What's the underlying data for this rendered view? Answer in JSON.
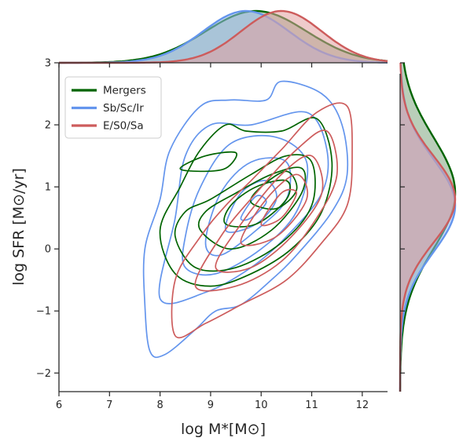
{
  "chart_data": {
    "type": "joint_kde",
    "xlabel": "log M*[M⊙]",
    "ylabel": "log SFR [M⊙/yr]",
    "xlim": [
      6,
      12.5
    ],
    "ylim": [
      -2.3,
      3.0
    ],
    "x_ticks": [
      "6",
      "7",
      "8",
      "9",
      "10",
      "11",
      "12"
    ],
    "y_ticks": [
      "−2",
      "−1",
      "0",
      "1",
      "2",
      "3"
    ],
    "grid": false,
    "legend_position": "top-left",
    "series": [
      {
        "name": "Mergers",
        "color": "#006400",
        "mode_x": 10.1,
        "mode_y": 0.8,
        "contours": [
          [
            [
              8.0,
              0.3
            ],
            [
              8.3,
              -0.4
            ],
            [
              9.0,
              -0.6
            ],
            [
              9.8,
              -0.4
            ],
            [
              10.6,
              0.0
            ],
            [
              11.2,
              0.6
            ],
            [
              11.4,
              1.4
            ],
            [
              11.1,
              2.1
            ],
            [
              10.4,
              1.9
            ],
            [
              9.7,
              1.9
            ],
            [
              9.3,
              2.0
            ],
            [
              8.8,
              1.6
            ],
            [
              8.4,
              1.0
            ],
            [
              8.0,
              0.3
            ]
          ],
          [
            [
              8.4,
              1.3
            ],
            [
              8.9,
              1.5
            ],
            [
              9.5,
              1.55
            ],
            [
              9.3,
              1.3
            ],
            [
              8.8,
              1.25
            ],
            [
              8.4,
              1.3
            ]
          ],
          [
            [
              8.3,
              0.2
            ],
            [
              8.7,
              -0.3
            ],
            [
              9.5,
              -0.3
            ],
            [
              10.4,
              0.1
            ],
            [
              11.0,
              0.7
            ],
            [
              11.0,
              1.4
            ],
            [
              10.5,
              1.5
            ],
            [
              9.8,
              1.2
            ],
            [
              9.0,
              0.8
            ],
            [
              8.5,
              0.6
            ],
            [
              8.3,
              0.2
            ]
          ],
          [
            [
              8.8,
              0.3
            ],
            [
              9.4,
              0.0
            ],
            [
              10.2,
              0.3
            ],
            [
              10.8,
              0.9
            ],
            [
              10.8,
              1.3
            ],
            [
              10.2,
              1.2
            ],
            [
              9.5,
              0.9
            ],
            [
              8.9,
              0.6
            ],
            [
              8.8,
              0.3
            ]
          ],
          [
            [
              9.3,
              0.4
            ],
            [
              9.9,
              0.4
            ],
            [
              10.5,
              0.8
            ],
            [
              10.5,
              1.1
            ],
            [
              9.9,
              1.0
            ],
            [
              9.4,
              0.7
            ],
            [
              9.3,
              0.4
            ]
          ],
          [
            [
              9.8,
              0.75
            ],
            [
              10.3,
              0.65
            ],
            [
              10.7,
              0.95
            ],
            [
              10.5,
              1.25
            ],
            [
              10.0,
              1.0
            ],
            [
              9.8,
              0.75
            ]
          ]
        ]
      },
      {
        "name": "Sb/Sc/Ir",
        "color": "#6495ED",
        "mode_x": 9.9,
        "mode_y": 0.7,
        "contours": [
          [
            [
              7.8,
              -1.65
            ],
            [
              7.7,
              -0.9
            ],
            [
              7.7,
              0.0
            ],
            [
              8.0,
              0.8
            ],
            [
              8.2,
              1.6
            ],
            [
              8.8,
              2.3
            ],
            [
              9.4,
              2.4
            ],
            [
              10.1,
              2.4
            ],
            [
              10.4,
              2.7
            ],
            [
              11.2,
              2.5
            ],
            [
              11.6,
              2.0
            ],
            [
              11.7,
              1.2
            ],
            [
              11.4,
              0.6
            ],
            [
              10.7,
              -0.1
            ],
            [
              10.2,
              -0.5
            ],
            [
              9.6,
              -0.9
            ],
            [
              9.1,
              -1.0
            ],
            [
              8.7,
              -1.3
            ],
            [
              8.1,
              -1.7
            ],
            [
              7.8,
              -1.65
            ]
          ],
          [
            [
              8.3,
              0.5
            ],
            [
              8.5,
              1.5
            ],
            [
              9.0,
              2.0
            ],
            [
              9.8,
              2.0
            ],
            [
              10.9,
              2.2
            ],
            [
              11.3,
              1.6
            ],
            [
              11.2,
              0.9
            ],
            [
              10.5,
              0.2
            ],
            [
              9.8,
              -0.3
            ],
            [
              8.9,
              -0.7
            ],
            [
              8.0,
              -0.8
            ],
            [
              8.3,
              0.5
            ]
          ],
          [
            [
              8.5,
              0.2
            ],
            [
              8.8,
              1.0
            ],
            [
              9.4,
              1.7
            ],
            [
              10.3,
              1.8
            ],
            [
              10.9,
              1.4
            ],
            [
              10.7,
              0.6
            ],
            [
              10.0,
              0.0
            ],
            [
              9.1,
              -0.4
            ],
            [
              8.5,
              -0.3
            ],
            [
              8.5,
              0.2
            ]
          ],
          [
            [
              8.9,
              0.1
            ],
            [
              9.2,
              0.9
            ],
            [
              9.8,
              1.4
            ],
            [
              10.5,
              1.4
            ],
            [
              10.5,
              0.8
            ],
            [
              9.9,
              0.3
            ],
            [
              9.2,
              -0.1
            ],
            [
              8.9,
              0.1
            ]
          ],
          [
            [
              9.3,
              0.3
            ],
            [
              9.6,
              0.9
            ],
            [
              10.1,
              1.1
            ],
            [
              10.3,
              0.8
            ],
            [
              9.9,
              0.4
            ],
            [
              9.3,
              0.3
            ]
          ],
          [
            [
              9.6,
              0.5
            ],
            [
              9.9,
              0.85
            ],
            [
              10.1,
              0.75
            ],
            [
              9.8,
              0.5
            ],
            [
              9.6,
              0.5
            ]
          ]
        ]
      },
      {
        "name": "E/S0/Sa",
        "color": "#CD5C5C",
        "mode_x": 10.4,
        "mode_y": 0.7,
        "contours": [
          [
            [
              8.3,
              -1.4
            ],
            [
              8.3,
              -0.5
            ],
            [
              8.8,
              0.2
            ],
            [
              9.3,
              0.7
            ],
            [
              9.8,
              1.1
            ],
            [
              10.4,
              1.6
            ],
            [
              11.1,
              2.2
            ],
            [
              11.7,
              2.3
            ],
            [
              11.8,
              1.5
            ],
            [
              11.7,
              0.7
            ],
            [
              11.2,
              0.1
            ],
            [
              10.5,
              -0.5
            ],
            [
              9.6,
              -0.9
            ],
            [
              8.9,
              -1.2
            ],
            [
              8.3,
              -1.4
            ]
          ],
          [
            [
              8.7,
              -0.6
            ],
            [
              9.2,
              0.2
            ],
            [
              9.9,
              0.9
            ],
            [
              10.7,
              1.6
            ],
            [
              11.3,
              1.9
            ],
            [
              11.5,
              1.2
            ],
            [
              11.1,
              0.5
            ],
            [
              10.4,
              -0.2
            ],
            [
              9.5,
              -0.6
            ],
            [
              8.7,
              -0.6
            ]
          ],
          [
            [
              9.1,
              -0.3
            ],
            [
              9.6,
              0.4
            ],
            [
              10.4,
              1.2
            ],
            [
              11.0,
              1.5
            ],
            [
              11.2,
              0.9
            ],
            [
              10.6,
              0.2
            ],
            [
              9.8,
              -0.3
            ],
            [
              9.1,
              -0.3
            ]
          ],
          [
            [
              9.6,
              0.1
            ],
            [
              10.1,
              0.8
            ],
            [
              10.7,
              1.2
            ],
            [
              10.9,
              0.8
            ],
            [
              10.3,
              0.2
            ],
            [
              9.6,
              0.1
            ]
          ],
          [
            [
              10.0,
              0.4
            ],
            [
              10.4,
              0.9
            ],
            [
              10.7,
              0.9
            ],
            [
              10.4,
              0.5
            ],
            [
              10.0,
              0.4
            ]
          ]
        ]
      }
    ],
    "marginal_x": [
      {
        "name": "Mergers",
        "color": "#006400",
        "fill": "#7fa67f",
        "mu": 9.9,
        "sigma": 1.0
      },
      {
        "name": "Sb/Sc/Ir",
        "color": "#6495ED",
        "fill": "#9cbcf2",
        "mu": 9.7,
        "sigma": 0.85
      },
      {
        "name": "E/S0/Sa",
        "color": "#CD5C5C",
        "fill": "#e2a0a0",
        "mu": 10.4,
        "sigma": 0.8
      }
    ],
    "marginal_y": [
      {
        "name": "Mergers",
        "color": "#006400",
        "fill": "#7fa67f",
        "mu": 0.9,
        "sigma": 0.9
      },
      {
        "name": "Sb/Sc/Ir",
        "color": "#6495ED",
        "fill": "#9cbcf2",
        "mu": 0.7,
        "sigma": 0.75
      },
      {
        "name": "E/S0/Sa",
        "color": "#CD5C5C",
        "fill": "#e2a0a0",
        "mu": 0.8,
        "sigma": 0.7
      }
    ]
  }
}
